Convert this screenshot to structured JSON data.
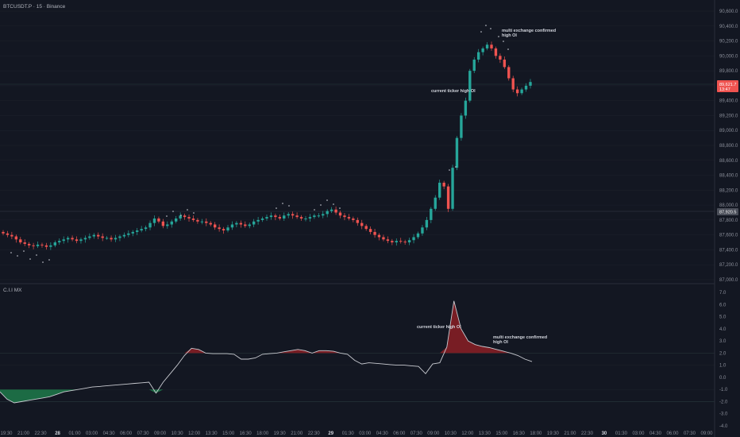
{
  "header": {
    "title": "BTCUSDT.P · 15 · Binance"
  },
  "colors": {
    "up": "#26a69a",
    "down": "#ef5350",
    "bg": "#131722",
    "grid": "#1e222d",
    "oi_line": "#c8cad0",
    "oi_up": "#8b1e24",
    "oi_down": "#1e7a4a"
  },
  "price_badge": {
    "value": "89,621.7",
    "sub": "13:47"
  },
  "level_badge": {
    "value": "87,920.5"
  },
  "indicator": {
    "title": "C.I.I MX"
  },
  "annotations": {
    "top_multi": [
      "multi exchange confirmed",
      "high OI"
    ],
    "top_current": "current ticker high OI",
    "bottom_current": "current ticker high OI",
    "bottom_multi": [
      "multi exchange confirmed",
      "high OI"
    ]
  },
  "chart_data": [
    {
      "type": "candlestick",
      "title": "BTCUSDT.P · 15 · Binance",
      "ylim": [
        87000,
        90600
      ],
      "yticks": [
        "90,600.0",
        "90,400.0",
        "90,200.0",
        "90,000.0",
        "89,800.0",
        "89,600.0",
        "89,400.0",
        "89,200.0",
        "89,000.0",
        "88,800.0",
        "88,600.0",
        "88,400.0",
        "88,200.0",
        "88,000.0",
        "87,800.0",
        "87,600.0",
        "87,400.0",
        "87,200.0",
        "87,000.0"
      ],
      "xticks": [
        "19:30",
        "21:00",
        "22:30",
        "28",
        "01:00",
        "03:00",
        "04:30",
        "06:00",
        "07:30",
        "09:00",
        "10:30",
        "12:00",
        "13:30",
        "15:00",
        "16:30",
        "18:00",
        "19:30",
        "21:00",
        "22:30",
        "29",
        "01:30",
        "03:00",
        "04:30",
        "06:00",
        "07:30",
        "09:00",
        "10:30",
        "12:00",
        "13:30",
        "15:00",
        "16:30",
        "18:00",
        "19:30",
        "21:00",
        "22:30",
        "30",
        "01:30",
        "03:00",
        "04:30",
        "06:00",
        "07:30",
        "09:00"
      ],
      "close": [
        87620,
        87600,
        87580,
        87540,
        87500,
        87480,
        87460,
        87450,
        87470,
        87460,
        87440,
        87460,
        87500,
        87520,
        87540,
        87560,
        87540,
        87520,
        87540,
        87560,
        87580,
        87600,
        87580,
        87560,
        87560,
        87540,
        87560,
        87580,
        87600,
        87620,
        87640,
        87660,
        87680,
        87700,
        87760,
        87820,
        87780,
        87720,
        87740,
        87780,
        87820,
        87860,
        87840,
        87820,
        87800,
        87780,
        87780,
        87760,
        87740,
        87700,
        87680,
        87660,
        87700,
        87740,
        87760,
        87740,
        87720,
        87740,
        87780,
        87800,
        87820,
        87840,
        87860,
        87840,
        87820,
        87860,
        87880,
        87860,
        87840,
        87820,
        87820,
        87840,
        87860,
        87860,
        87880,
        87920,
        87940,
        87900,
        87860,
        87840,
        87820,
        87800,
        87760,
        87720,
        87680,
        87640,
        87600,
        87570,
        87540,
        87520,
        87500,
        87520,
        87510,
        87500,
        87530,
        87570,
        87620,
        87700,
        87800,
        87950,
        88100,
        88300,
        88250,
        87950,
        88500,
        88900,
        89200,
        89400,
        89800,
        89950,
        90050,
        90100,
        90150,
        90100,
        90000,
        89950,
        89850,
        89700,
        89550,
        89500,
        89550,
        89600,
        89650
      ],
      "oi": {
        "ylim": [
          -4,
          7
        ],
        "yticks": [
          "7.0",
          "6.0",
          "5.0",
          "4.0",
          "3.0",
          "2.0",
          "1.0",
          "0.0",
          "-1.0",
          "-2.0",
          "-3.0",
          "-4.0"
        ],
        "values": [
          -1.2,
          -1.8,
          -2.1,
          -2.0,
          -1.9,
          -1.8,
          -1.7,
          -1.6,
          -1.4,
          -1.2,
          -1.1,
          -1.0,
          -0.9,
          -0.8,
          -0.75,
          -0.7,
          -0.65,
          -0.6,
          -0.55,
          -0.5,
          -0.45,
          -0.4,
          -1.3,
          -0.4,
          0.3,
          1.0,
          1.8,
          2.4,
          2.3,
          2.0,
          1.95,
          1.95,
          1.95,
          1.9,
          1.5,
          1.5,
          1.6,
          1.9,
          1.95,
          2.0,
          2.1,
          2.2,
          2.3,
          2.2,
          2.0,
          2.2,
          2.2,
          2.15,
          2.0,
          1.9,
          1.4,
          1.1,
          1.2,
          1.15,
          1.1,
          1.05,
          1.0,
          1.0,
          0.95,
          0.9,
          0.3,
          1.1,
          1.2,
          2.5,
          6.3,
          4.0,
          3.0,
          2.7,
          2.55,
          2.45,
          2.3,
          2.15,
          2.0,
          1.8,
          1.5,
          1.3
        ]
      }
    }
  ]
}
